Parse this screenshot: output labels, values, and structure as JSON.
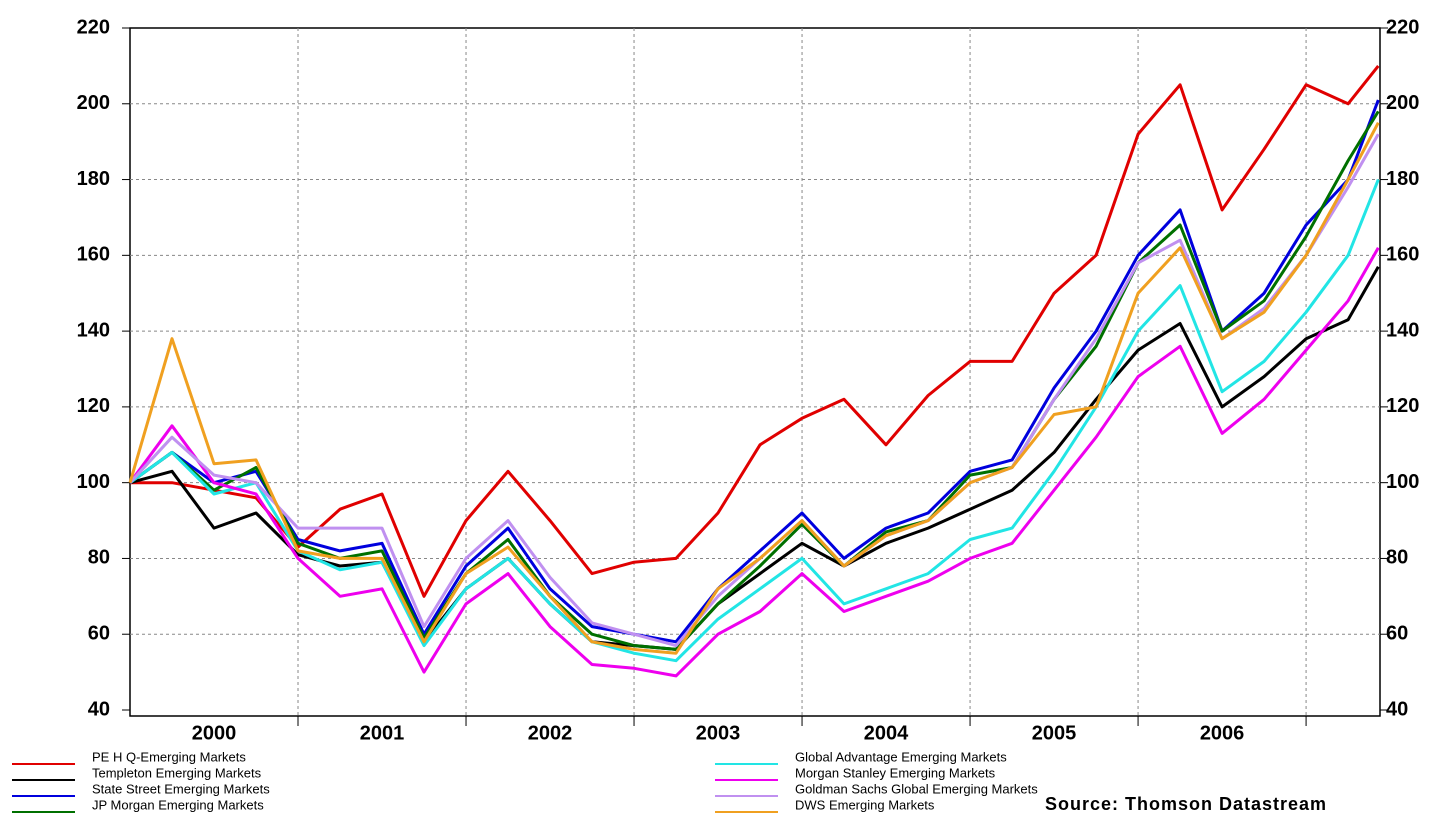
{
  "chart_data": {
    "type": "line",
    "source": "Source: Thomson Datastream",
    "x": [
      2000,
      2000.25,
      2000.5,
      2000.75,
      2001,
      2001.25,
      2001.5,
      2001.75,
      2002,
      2002.25,
      2002.5,
      2002.75,
      2003,
      2003.25,
      2003.5,
      2003.75,
      2004,
      2004.25,
      2004.5,
      2004.75,
      2005,
      2005.25,
      2005.5,
      2005.75,
      2006,
      2006.25,
      2006.5,
      2006.75,
      2007,
      2007.25,
      2007.43
    ],
    "xlim": [
      2000,
      2007.44
    ],
    "xticks": [
      {
        "value": 2000.5,
        "label": "2000"
      },
      {
        "value": 2001.5,
        "label": "2001"
      },
      {
        "value": 2002.5,
        "label": "2002"
      },
      {
        "value": 2003.5,
        "label": "2003"
      },
      {
        "value": 2004.5,
        "label": "2004"
      },
      {
        "value": 2005.5,
        "label": "2005"
      },
      {
        "value": 2006.5,
        "label": "2006"
      }
    ],
    "xgrid": [
      2001,
      2002,
      2003,
      2004,
      2005,
      2006,
      2007
    ],
    "ylim": [
      40,
      220
    ],
    "yticks": [
      40,
      60,
      80,
      100,
      120,
      140,
      160,
      180,
      200,
      220
    ],
    "grid": true,
    "series": [
      {
        "name": "PE H Q-Emerging Markets",
        "color": "#e00000",
        "values": [
          100,
          100,
          98,
          96,
          83,
          93,
          97,
          70,
          90,
          103,
          90,
          76,
          79,
          80,
          92,
          110,
          117,
          122,
          110,
          123,
          132,
          132,
          150,
          160,
          192,
          205,
          172,
          188,
          205,
          200,
          210
        ]
      },
      {
        "name": "Templeton Emerging Markets",
        "color": "#000000",
        "values": [
          100,
          103,
          88,
          92,
          81,
          78,
          79,
          58,
          72,
          80,
          68,
          58,
          57,
          56,
          68,
          76,
          84,
          78,
          84,
          88,
          93,
          98,
          108,
          122,
          135,
          142,
          120,
          128,
          138,
          143,
          157
        ]
      },
      {
        "name": "State Street Emerging Markets",
        "color": "#0000dd",
        "values": [
          100,
          108,
          100,
          103,
          85,
          82,
          84,
          60,
          78,
          88,
          72,
          62,
          60,
          58,
          72,
          82,
          92,
          80,
          88,
          92,
          103,
          106,
          125,
          140,
          160,
          172,
          140,
          150,
          168,
          180,
          201
        ]
      },
      {
        "name": "JP Morgan Emerging Markets",
        "color": "#007000",
        "values": [
          100,
          108,
          98,
          104,
          84,
          80,
          82,
          59,
          76,
          85,
          70,
          60,
          57,
          56,
          68,
          78,
          89,
          78,
          87,
          90,
          102,
          104,
          122,
          136,
          158,
          168,
          140,
          148,
          165,
          185,
          198
        ]
      },
      {
        "name": "Global Advantage Emerging Markets",
        "color": "#22e5e5",
        "values": [
          100,
          108,
          97,
          100,
          82,
          77,
          79,
          57,
          72,
          80,
          68,
          58,
          55,
          53,
          64,
          72,
          80,
          68,
          72,
          76,
          85,
          88,
          103,
          120,
          140,
          152,
          124,
          132,
          145,
          160,
          180
        ]
      },
      {
        "name": "Morgan Stanley Emerging Markets",
        "color": "#ee00ee",
        "values": [
          100,
          115,
          100,
          97,
          80,
          70,
          72,
          50,
          68,
          76,
          62,
          52,
          51,
          49,
          60,
          66,
          76,
          66,
          70,
          74,
          80,
          84,
          98,
          112,
          128,
          136,
          113,
          122,
          135,
          148,
          162
        ]
      },
      {
        "name": "Goldman Sachs Global Emerging Markets",
        "color": "#c090f0",
        "values": [
          100,
          112,
          102,
          100,
          88,
          88,
          88,
          62,
          80,
          90,
          75,
          63,
          60,
          57,
          70,
          80,
          90,
          78,
          86,
          90,
          100,
          104,
          122,
          138,
          158,
          164,
          138,
          146,
          160,
          178,
          192
        ]
      },
      {
        "name": "DWS Emerging Markets",
        "color": "#f0a020",
        "values": [
          100,
          138,
          105,
          106,
          82,
          80,
          80,
          58,
          76,
          83,
          70,
          58,
          56,
          55,
          72,
          80,
          90,
          78,
          86,
          90,
          100,
          104,
          118,
          120,
          150,
          162,
          138,
          145,
          160,
          180,
          195
        ]
      }
    ]
  }
}
